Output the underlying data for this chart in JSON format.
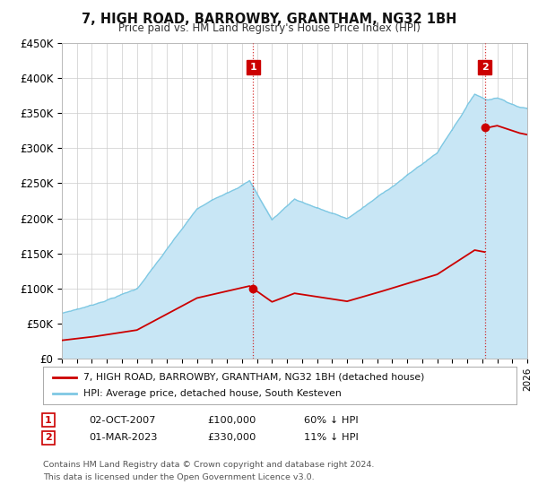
{
  "title": "7, HIGH ROAD, BARROWBY, GRANTHAM, NG32 1BH",
  "subtitle": "Price paid vs. HM Land Registry's House Price Index (HPI)",
  "ylim": [
    0,
    450000
  ],
  "yticks": [
    0,
    50000,
    100000,
    150000,
    200000,
    250000,
    300000,
    350000,
    400000,
    450000
  ],
  "ytick_labels": [
    "£0",
    "£50K",
    "£100K",
    "£150K",
    "£200K",
    "£250K",
    "£300K",
    "£350K",
    "£400K",
    "£450K"
  ],
  "hpi_color": "#7ec8e3",
  "hpi_fill_color": "#c8e6f5",
  "price_color": "#cc0000",
  "background_color": "#ffffff",
  "grid_color": "#cccccc",
  "legend_label_price": "7, HIGH ROAD, BARROWBY, GRANTHAM, NG32 1BH (detached house)",
  "legend_label_hpi": "HPI: Average price, detached house, South Kesteven",
  "transaction_1_year": 2007,
  "transaction_1_month": 10,
  "transaction_1_price": 100000,
  "transaction_1_label": "02-OCT-2007",
  "transaction_1_price_label": "£100,000",
  "transaction_1_note": "60% ↓ HPI",
  "transaction_2_year": 2023,
  "transaction_2_month": 3,
  "transaction_2_price": 330000,
  "transaction_2_label": "01-MAR-2023",
  "transaction_2_price_label": "£330,000",
  "transaction_2_note": "11% ↓ HPI",
  "footnote_line1": "Contains HM Land Registry data © Crown copyright and database right 2024.",
  "footnote_line2": "This data is licensed under the Open Government Licence v3.0.",
  "xstart": 1995,
  "xend": 2026
}
